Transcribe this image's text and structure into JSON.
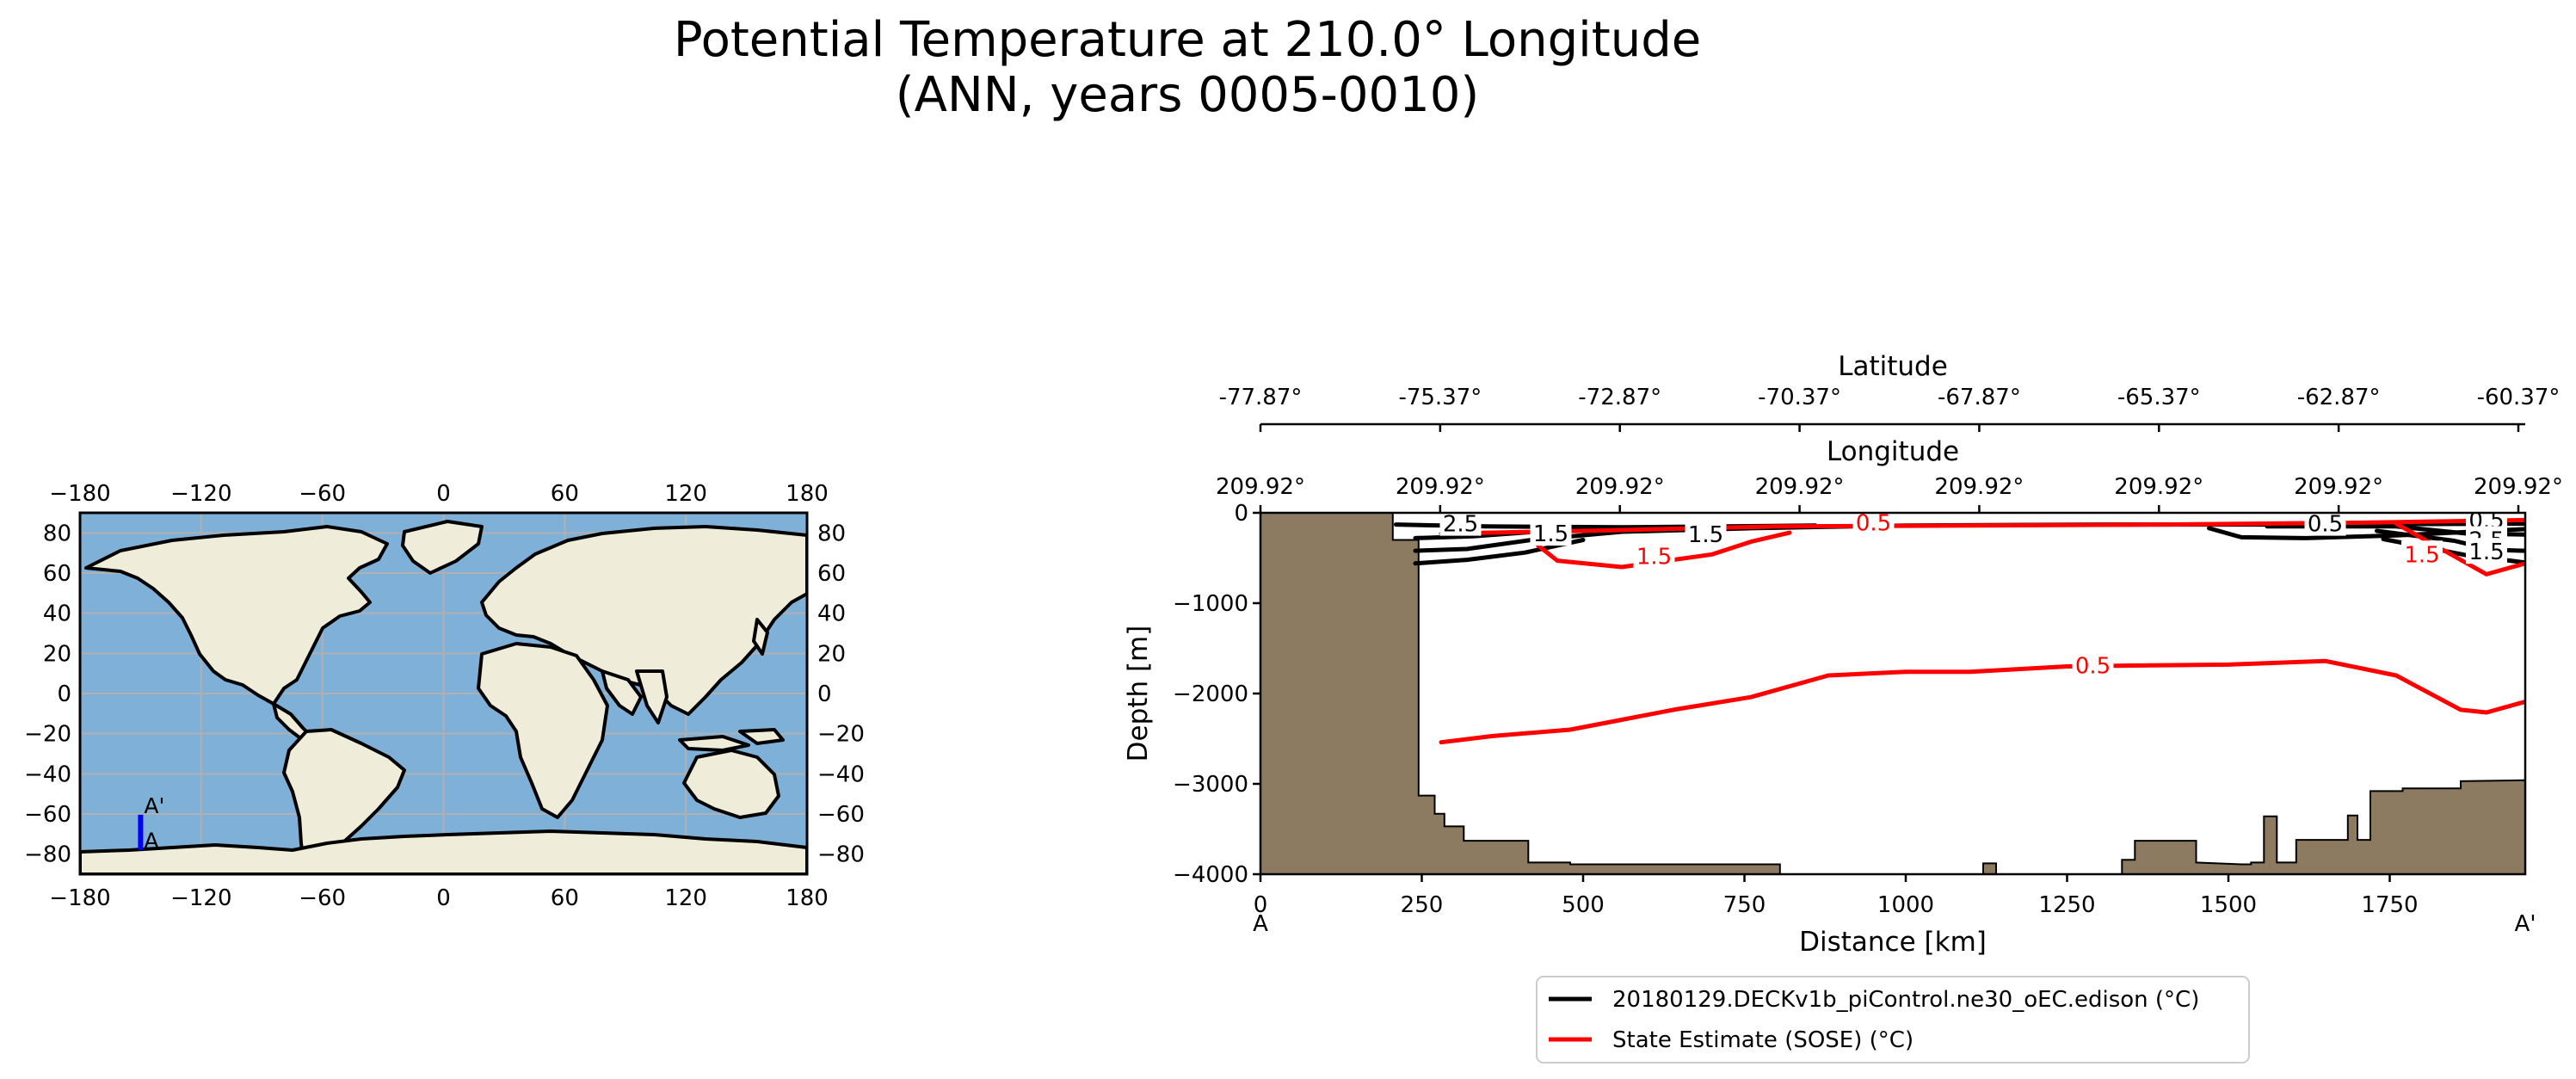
{
  "title_line1": "Potential Temperature at 210.0° Longitude",
  "title_line2": "(ANN, years 0005-0010)",
  "colors": {
    "ocean": "#7fb0d8",
    "land": "#efedd9",
    "topo": "#8c7b60",
    "model": "#000000",
    "obs": "#ff0000",
    "transect": "#0000ff",
    "grid": "#b0b0b0"
  },
  "chart_data": [
    {
      "type": "map",
      "projection": "PlateCarree",
      "xticks": [
        -180,
        -120,
        -60,
        0,
        60,
        120,
        180
      ],
      "yticks": [
        -80,
        -60,
        -40,
        -20,
        0,
        20,
        40,
        60,
        80
      ],
      "xlim": [
        -180,
        180
      ],
      "ylim": [
        -90,
        90
      ],
      "transect": {
        "lon": 210.0,
        "lat_start": -77.87,
        "lat_end": -60.37,
        "start_label": "A",
        "end_label": "A'"
      }
    },
    {
      "type": "line",
      "xlabel": "Distance [km]",
      "ylabel": "Depth [m]",
      "xlim": [
        0,
        1960
      ],
      "ylim": [
        -4000,
        0
      ],
      "xticks": [
        0,
        250,
        500,
        750,
        1000,
        1250,
        1500,
        1750
      ],
      "yticks": [
        0,
        -1000,
        -2000,
        -3000,
        -4000
      ],
      "start_label": "A",
      "end_label": "A'",
      "lat_axis": {
        "label": "Latitude",
        "ticks": [
          "-77.87°",
          "-75.37°",
          "-72.87°",
          "-70.37°",
          "-67.87°",
          "-65.37°",
          "-62.87°",
          "-60.37°"
        ]
      },
      "lon_axis": {
        "label": "Longitude",
        "ticks": [
          "209.92°",
          "209.92°",
          "209.92°",
          "209.92°",
          "209.92°",
          "209.92°",
          "209.92°",
          "209.92°"
        ]
      },
      "legend": [
        {
          "label": "20180129.DECKv1b_piControl.ne30_oEC.edison (°C)",
          "color": "#000000"
        },
        {
          "label": "State Estimate (SOSE) (°C)",
          "color": "#ff0000"
        }
      ],
      "bathymetry": [
        [
          0,
          0
        ],
        [
          205,
          0
        ],
        [
          205,
          -300
        ],
        [
          245,
          -300
        ],
        [
          245,
          -3130
        ],
        [
          270,
          -3130
        ],
        [
          270,
          -3330
        ],
        [
          285,
          -3330
        ],
        [
          285,
          -3470
        ],
        [
          315,
          -3470
        ],
        [
          315,
          -3630
        ],
        [
          415,
          -3630
        ],
        [
          415,
          -3870
        ],
        [
          480,
          -3870
        ],
        [
          480,
          -3890
        ],
        [
          805,
          -3890
        ],
        [
          805,
          -4000
        ],
        [
          1120,
          -4000
        ],
        [
          1120,
          -3880
        ],
        [
          1140,
          -3880
        ],
        [
          1140,
          -4000
        ],
        [
          1335,
          -4000
        ],
        [
          1335,
          -3840
        ],
        [
          1355,
          -3840
        ],
        [
          1355,
          -3630
        ],
        [
          1450,
          -3630
        ],
        [
          1450,
          -3870
        ],
        [
          1520,
          -3890
        ],
        [
          1535,
          -3890
        ],
        [
          1535,
          -3870
        ],
        [
          1555,
          -3870
        ],
        [
          1555,
          -3360
        ],
        [
          1575,
          -3360
        ],
        [
          1575,
          -3870
        ],
        [
          1605,
          -3870
        ],
        [
          1605,
          -3620
        ],
        [
          1685,
          -3620
        ],
        [
          1685,
          -3350
        ],
        [
          1700,
          -3350
        ],
        [
          1700,
          -3620
        ],
        [
          1720,
          -3620
        ],
        [
          1720,
          -3080
        ],
        [
          1770,
          -3080
        ],
        [
          1770,
          -3050
        ],
        [
          1860,
          -3050
        ],
        [
          1860,
          -2970
        ],
        [
          1960,
          -2960
        ],
        [
          1960,
          -4000
        ],
        [
          0,
          -4000
        ]
      ],
      "series": [
        {
          "name": "20180129.DECKv1b_piControl.ne30_oEC.edison (°C)",
          "color": "#000000",
          "contours": [
            {
              "level": 2.5,
              "points": [
                [
                  210,
                  -130
                ],
                [
                  350,
                  -150
                ],
                [
                  560,
                  -160
                ],
                [
                  720,
                  -150
                ],
                [
                  860,
                  -140
                ]
              ]
            },
            {
              "level": 1.5,
              "points": [
                [
                  240,
                  -280
                ],
                [
                  330,
                  -260
                ],
                [
                  460,
                  -190
                ],
                [
                  650,
                  -160
                ],
                [
                  800,
                  -150
                ]
              ]
            },
            {
              "level": 0.5,
              "points": [
                [
                  240,
                  -420
                ],
                [
                  320,
                  -400
                ],
                [
                  420,
                  -300
                ],
                [
                  560,
                  -210
                ],
                [
                  760,
                  -170
                ],
                [
                  1000,
                  -140
                ],
                [
                  1300,
                  -130
                ],
                [
                  1600,
                  -130
                ],
                [
                  1960,
                  -120
                ]
              ]
            },
            {
              "level": 0.5,
              "points": [
                [
                  240,
                  -560
                ],
                [
                  320,
                  -520
                ],
                [
                  410,
                  -440
                ],
                [
                  500,
                  -300
                ]
              ]
            },
            {
              "level": 0.5,
              "points": [
                [
                  1470,
                  -170
                ],
                [
                  1520,
                  -270
                ],
                [
                  1620,
                  -280
                ],
                [
                  1760,
                  -250
                ],
                [
                  1960,
                  -180
                ]
              ]
            },
            {
              "level": 1.5,
              "points": [
                [
                  1560,
                  -150
                ],
                [
                  1760,
                  -150
                ],
                [
                  1870,
                  -230
                ],
                [
                  1960,
                  -240
                ]
              ]
            },
            {
              "level": 2.5,
              "points": [
                [
                  1730,
                  -200
                ],
                [
                  1850,
                  -310
                ],
                [
                  1910,
                  -410
                ],
                [
                  1960,
                  -420
                ]
              ]
            },
            {
              "level": 1.5,
              "points": [
                [
                  1740,
                  -290
                ],
                [
                  1870,
                  -470
                ],
                [
                  1960,
                  -550
                ]
              ]
            }
          ]
        },
        {
          "name": "State Estimate (SOSE) (°C)",
          "color": "#ff0000",
          "contours": [
            {
              "level": 0.5,
              "points": [
                [
                  280,
                  -2540
                ],
                [
                  360,
                  -2470
                ],
                [
                  480,
                  -2400
                ],
                [
                  560,
                  -2290
                ],
                [
                  640,
                  -2180
                ],
                [
                  760,
                  -2040
                ],
                [
                  880,
                  -1800
                ],
                [
                  1000,
                  -1760
                ],
                [
                  1100,
                  -1760
                ],
                [
                  1250,
                  -1700
                ],
                [
                  1350,
                  -1690
                ],
                [
                  1500,
                  -1680
                ],
                [
                  1650,
                  -1640
                ],
                [
                  1760,
                  -1800
                ],
                [
                  1860,
                  -2180
                ],
                [
                  1900,
                  -2210
                ],
                [
                  1960,
                  -2090
                ]
              ]
            },
            {
              "level": 0.5,
              "points": [
                [
                  280,
                  -230
                ],
                [
                  500,
                  -200
                ],
                [
                  800,
                  -150
                ],
                [
                  1100,
                  -140
                ],
                [
                  1400,
                  -130
                ],
                [
                  1700,
                  -110
                ],
                [
                  1960,
                  -80
                ]
              ]
            },
            {
              "level": 1.5,
              "points": [
                [
                  430,
                  -360
                ],
                [
                  460,
                  -530
                ],
                [
                  560,
                  -600
                ],
                [
                  700,
                  -460
                ],
                [
                  760,
                  -320
                ],
                [
                  820,
                  -220
                ]
              ]
            },
            {
              "level": 1.5,
              "points": [
                [
                  1760,
                  -120
                ],
                [
                  1830,
                  -400
                ],
                [
                  1900,
                  -680
                ],
                [
                  1960,
                  -560
                ]
              ]
            }
          ]
        }
      ],
      "contour_labels": [
        {
          "text": "2.5",
          "x": 310,
          "y": -120,
          "color": "#000000"
        },
        {
          "text": "1.5",
          "x": 450,
          "y": -230,
          "color": "#000000"
        },
        {
          "text": "1.5",
          "x": 690,
          "y": -240,
          "color": "#000000"
        },
        {
          "text": "0.5",
          "x": 950,
          "y": -110,
          "color": "#ff0000"
        },
        {
          "text": "1.5",
          "x": 610,
          "y": -480,
          "color": "#ff0000"
        },
        {
          "text": "0.5",
          "x": 1290,
          "y": -1690,
          "color": "#ff0000"
        },
        {
          "text": "0.5",
          "x": 1650,
          "y": -120,
          "color": "#000000"
        },
        {
          "text": "0.5",
          "x": 1900,
          "y": -80,
          "color": "#000000"
        },
        {
          "text": "2.5",
          "x": 1900,
          "y": -300,
          "color": "#000000"
        },
        {
          "text": "1.5",
          "x": 1900,
          "y": -430,
          "color": "#000000"
        },
        {
          "text": "1.5",
          "x": 1800,
          "y": -460,
          "color": "#ff0000"
        }
      ]
    }
  ]
}
